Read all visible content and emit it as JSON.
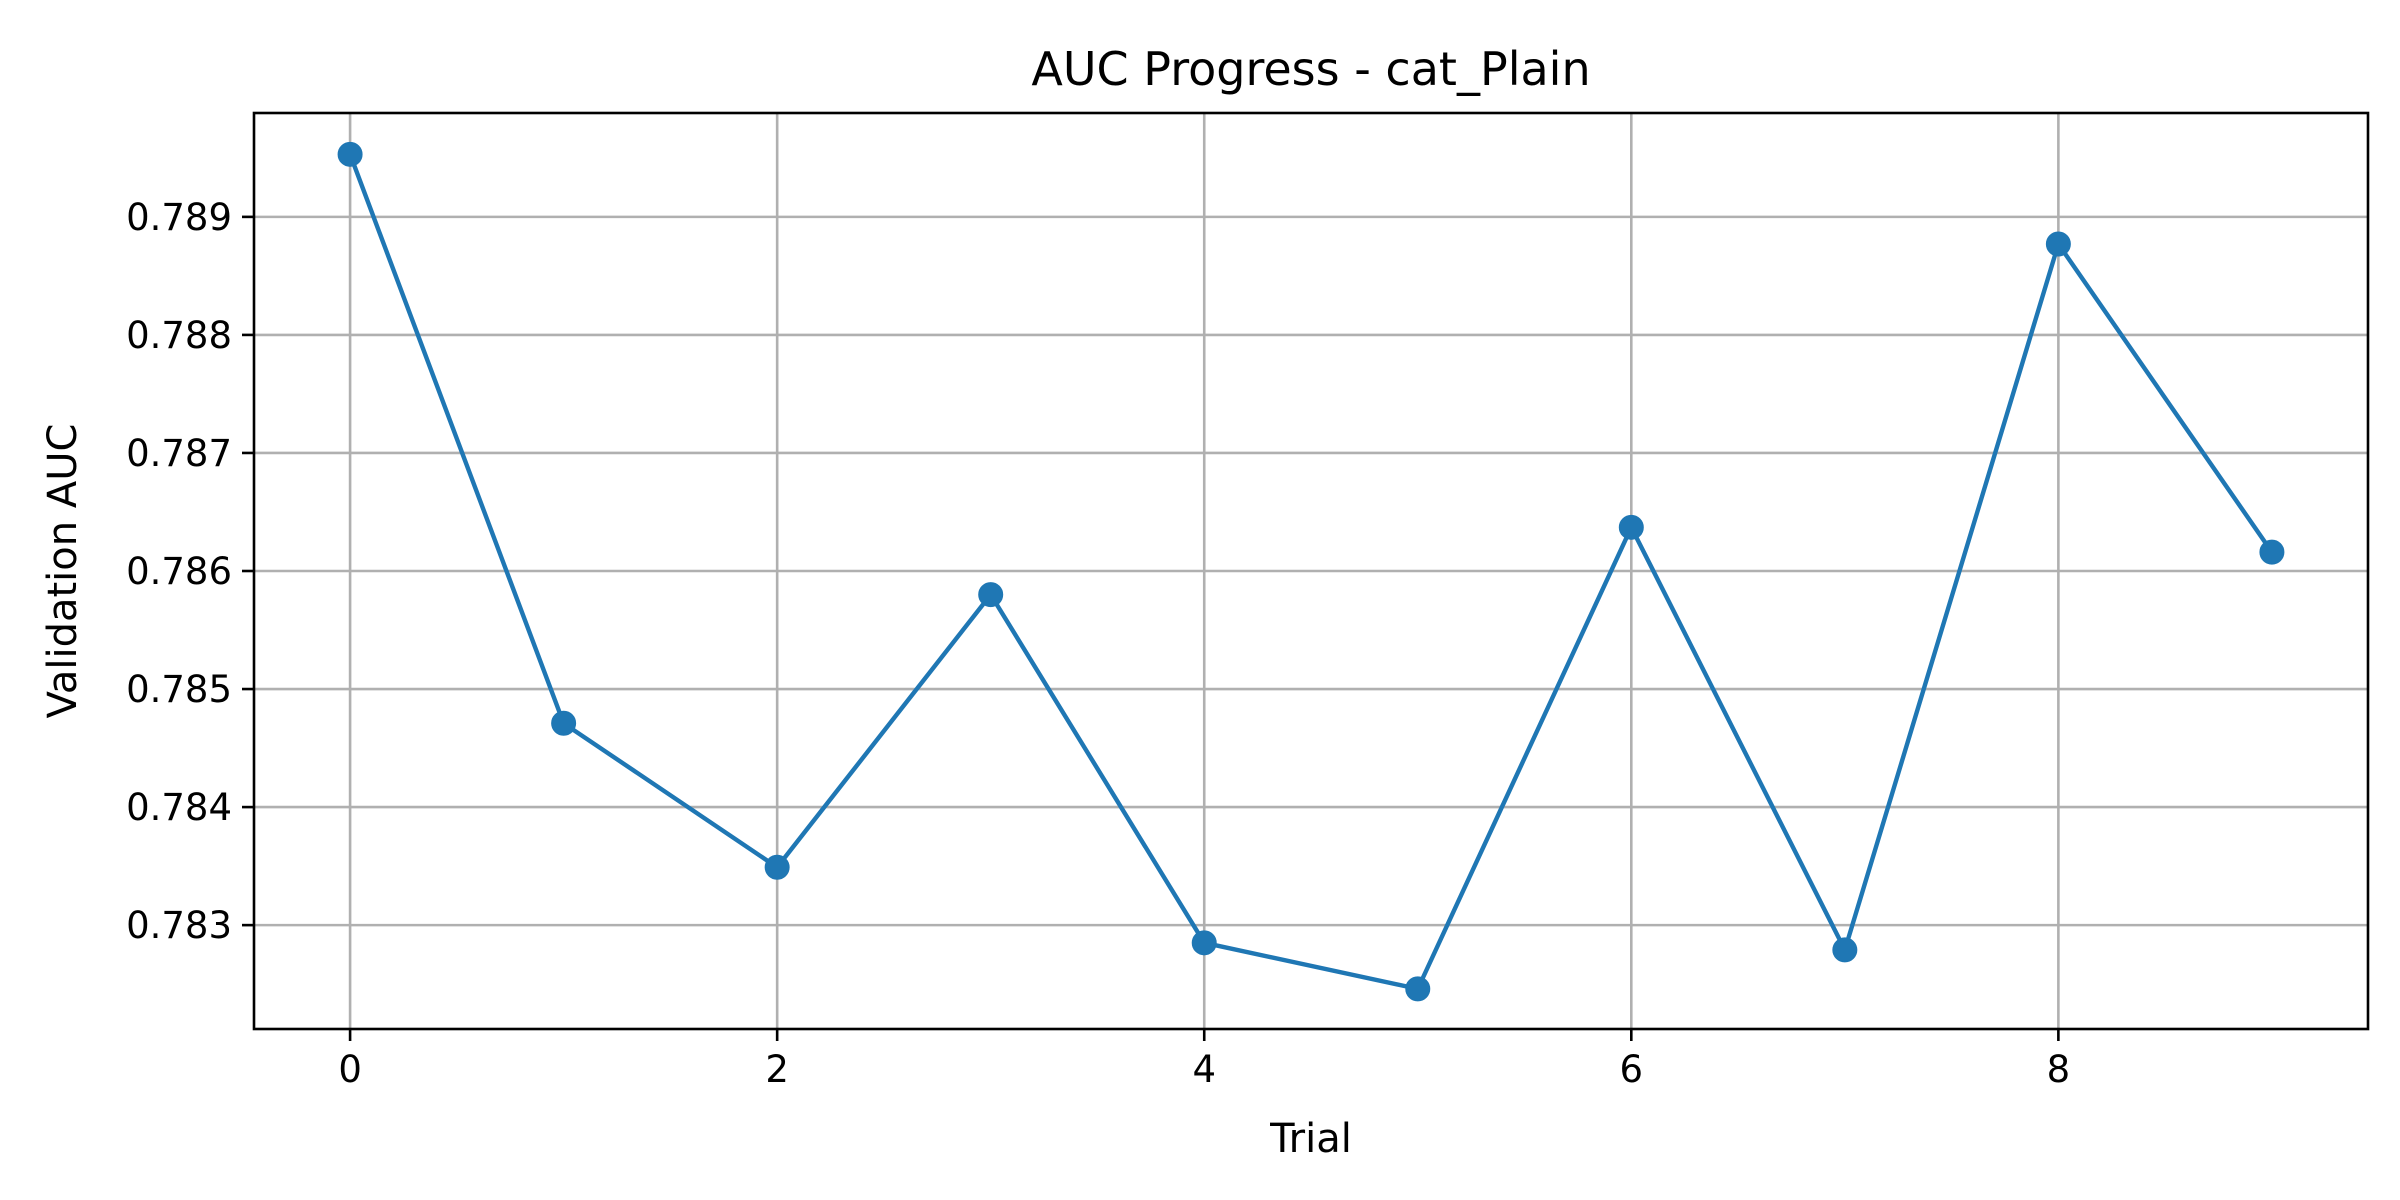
{
  "chart_data": {
    "type": "line",
    "title": "AUC Progress - cat_Plain",
    "xlabel": "Trial",
    "ylabel": "Validation AUC",
    "x": [
      0,
      1,
      2,
      3,
      4,
      5,
      6,
      7,
      8,
      9
    ],
    "series": [
      {
        "values": [
          0.78953,
          0.78471,
          0.78349,
          0.7858,
          0.78285,
          0.78246,
          0.78637,
          0.78279,
          0.78877,
          0.78616
        ],
        "color": "#1f77b4",
        "marker": "circle"
      }
    ],
    "xlim": [
      -0.45,
      9.45
    ],
    "ylim": [
      0.78212,
      0.78988
    ],
    "xticks": [
      0,
      2,
      4,
      6,
      8
    ],
    "xtick_labels": [
      "0",
      "2",
      "4",
      "6",
      "8"
    ],
    "yticks": [
      0.783,
      0.784,
      0.785,
      0.786,
      0.787,
      0.788,
      0.789
    ],
    "ytick_labels": [
      "0.783",
      "0.784",
      "0.785",
      "0.786",
      "0.787",
      "0.788",
      "0.789"
    ],
    "grid": true,
    "grid_color": "#b0b0b0",
    "legend": false
  }
}
